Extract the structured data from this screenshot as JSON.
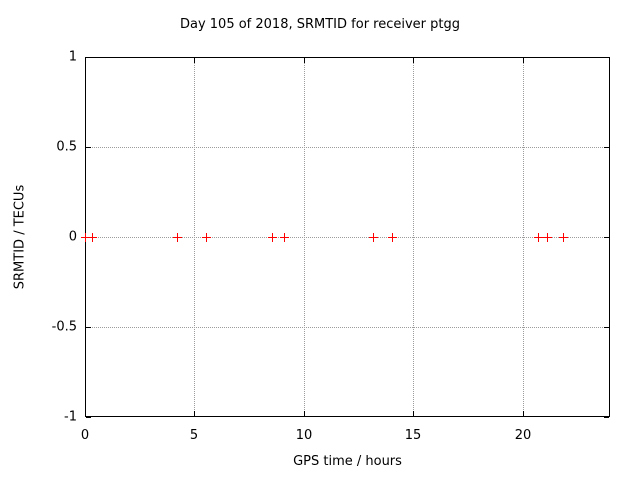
{
  "chart_data": {
    "type": "scatter",
    "title": "Day 105 of 2018, SRMTID for receiver ptgg",
    "xlabel": "GPS time / hours",
    "ylabel": "SRMTID / TECUs",
    "xlim": [
      0,
      24
    ],
    "ylim": [
      -1,
      1
    ],
    "xticks": [
      0,
      5,
      10,
      15,
      20
    ],
    "xtick_labels": [
      "0",
      "5",
      "10",
      "15",
      "20"
    ],
    "yticks": [
      -1,
      -0.5,
      0,
      0.5,
      1
    ],
    "ytick_labels": [
      "-1",
      "-0.5",
      "0",
      "0.5",
      "1"
    ],
    "grid": "dotted",
    "legend": "none",
    "series": [
      {
        "name": "SRMTID",
        "marker": "plus",
        "color": "#ff0000",
        "points": [
          {
            "x": 0.0,
            "y": 0
          },
          {
            "x": 0.3,
            "y": 0
          },
          {
            "x": 4.2,
            "y": 0
          },
          {
            "x": 5.55,
            "y": 0
          },
          {
            "x": 8.55,
            "y": 0
          },
          {
            "x": 9.1,
            "y": 0
          },
          {
            "x": 13.15,
            "y": 0
          },
          {
            "x": 14.05,
            "y": 0
          },
          {
            "x": 20.7,
            "y": 0
          },
          {
            "x": 21.1,
            "y": 0
          },
          {
            "x": 21.85,
            "y": 0
          }
        ]
      }
    ],
    "colors": {
      "marker": "#ff0000",
      "grid": "#9c9c9c",
      "axis": "#000000",
      "background": "#ffffff",
      "text": "#000000"
    }
  }
}
